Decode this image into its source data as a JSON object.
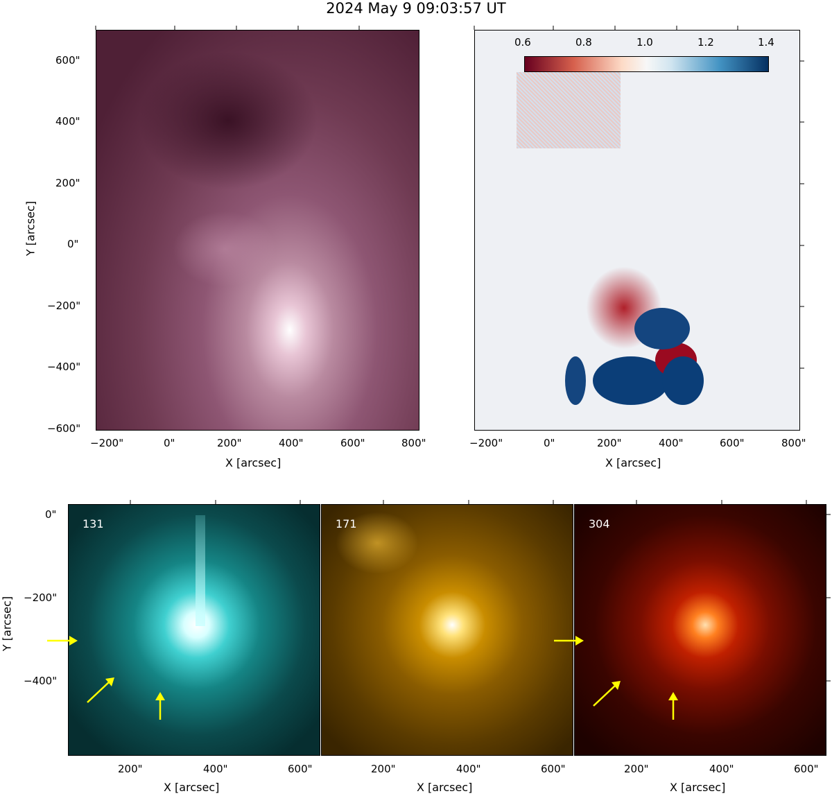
{
  "figure": {
    "title": "2024 May 9 09:03:57 UT",
    "top_panels": {
      "x_ticks": [
        "−200\"",
        "0\"",
        "200\"",
        "400\"",
        "600\"",
        "800\""
      ],
      "y_ticks": [
        "600\"",
        "400\"",
        "200\"",
        "0\"",
        "−200\"",
        "−400\"",
        "−600\""
      ],
      "x_label": "X [arcsec]",
      "y_label": "Y [arcsec]",
      "left_colormap": "#6a3049",
      "right_colorbar": {
        "ticks": [
          "0.6",
          "0.8",
          "1.0",
          "1.2",
          "1.4"
        ],
        "min": 0.6,
        "max": 1.4,
        "colors": [
          "#67001f",
          "#f7f7f7",
          "#053061"
        ]
      }
    },
    "bottom_panels": {
      "x_ticks": [
        "200\"",
        "400\"",
        "600\""
      ],
      "y_ticks": [
        "0\"",
        "−200\"",
        "−400\""
      ],
      "x_label": "X [arcsec]",
      "y_label": "Y [arcsec]",
      "panels": [
        {
          "label": "131",
          "color": "#00c0c0"
        },
        {
          "label": "171",
          "color": "#e0a000"
        },
        {
          "label": "304",
          "color": "#e03000"
        }
      ],
      "arrow_color": "#ffff00"
    }
  }
}
